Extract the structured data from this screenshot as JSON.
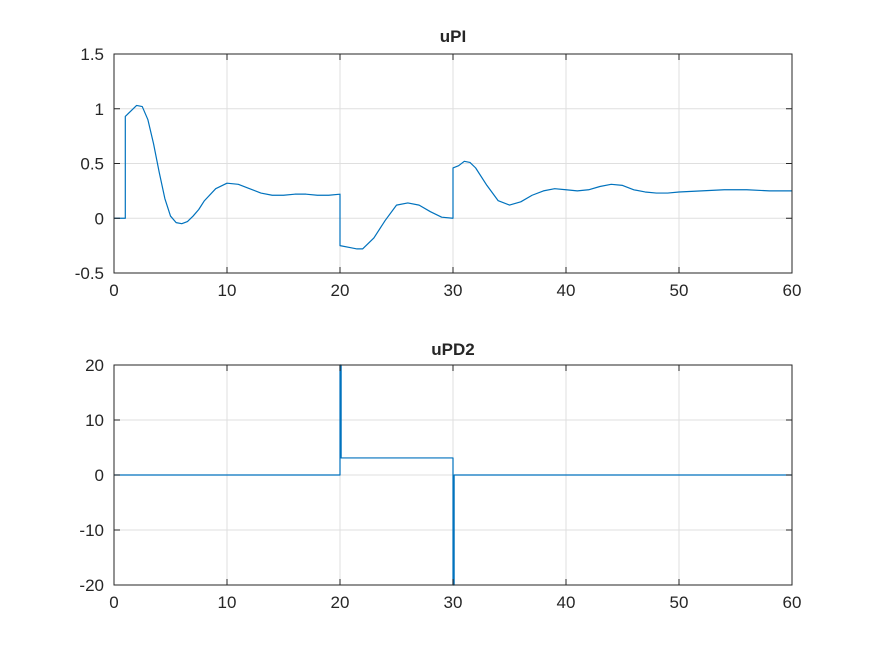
{
  "figure": {
    "background": "#ffffff",
    "axis_color": "#262626",
    "grid_color": "#dfdfdf"
  },
  "chart_data": [
    {
      "type": "line",
      "title": "uPI",
      "xlabel": "",
      "ylabel": "",
      "xlim": [
        0,
        60
      ],
      "ylim": [
        -0.5,
        1.5
      ],
      "xticks": [
        0,
        10,
        20,
        30,
        40,
        50,
        60
      ],
      "yticks": [
        -0.5,
        0,
        0.5,
        1,
        1.5
      ],
      "xtick_labels": [
        "0",
        "10",
        "20",
        "30",
        "40",
        "50",
        "60"
      ],
      "ytick_labels": [
        "-0.5",
        "0",
        "0.5",
        "1",
        "1.5"
      ],
      "grid": true,
      "series": [
        {
          "color": "#0072bd",
          "x": [
            0,
            1,
            1,
            1.5,
            2,
            2.5,
            3,
            3.5,
            4,
            4.5,
            5,
            5.5,
            6,
            6.5,
            7,
            7.5,
            8,
            9,
            10,
            11,
            12,
            13,
            14,
            15,
            16,
            17,
            18,
            19,
            20,
            20,
            21,
            21.5,
            22,
            23,
            24,
            25,
            26,
            27,
            28,
            29,
            30,
            30,
            30.5,
            31,
            31.5,
            32,
            33,
            34,
            35,
            36,
            37,
            38,
            39,
            40,
            41,
            42,
            43,
            44,
            45,
            46,
            47,
            48,
            49,
            50,
            52,
            54,
            56,
            58,
            60
          ],
          "y": [
            0,
            0,
            0.93,
            0.98,
            1.03,
            1.02,
            0.9,
            0.68,
            0.42,
            0.18,
            0.02,
            -0.04,
            -0.05,
            -0.03,
            0.02,
            0.08,
            0.16,
            0.27,
            0.32,
            0.31,
            0.27,
            0.23,
            0.21,
            0.21,
            0.22,
            0.22,
            0.21,
            0.21,
            0.22,
            -0.25,
            -0.27,
            -0.28,
            -0.28,
            -0.18,
            -0.02,
            0.12,
            0.14,
            0.12,
            0.06,
            0.01,
            0,
            0.46,
            0.48,
            0.52,
            0.51,
            0.46,
            0.3,
            0.16,
            0.12,
            0.15,
            0.21,
            0.25,
            0.27,
            0.26,
            0.25,
            0.26,
            0.29,
            0.31,
            0.3,
            0.26,
            0.24,
            0.23,
            0.23,
            0.24,
            0.25,
            0.26,
            0.26,
            0.25,
            0.25
          ]
        }
      ]
    },
    {
      "type": "line",
      "title": "uPD2",
      "xlabel": "",
      "ylabel": "",
      "xlim": [
        0,
        60
      ],
      "ylim": [
        -20,
        20
      ],
      "xticks": [
        0,
        10,
        20,
        30,
        40,
        50,
        60
      ],
      "yticks": [
        -20,
        -10,
        0,
        10,
        20
      ],
      "xtick_labels": [
        "0",
        "10",
        "20",
        "30",
        "40",
        "50",
        "60"
      ],
      "ytick_labels": [
        "-20",
        "-10",
        "0",
        "10",
        "20"
      ],
      "grid": true,
      "series": [
        {
          "color": "#0072bd",
          "x": [
            0,
            20,
            20,
            20.1,
            20.1,
            30,
            30,
            30.1,
            30.1,
            60
          ],
          "y": [
            0,
            0,
            20,
            20,
            3.1,
            3.1,
            -20,
            -20,
            0,
            0
          ]
        }
      ]
    }
  ]
}
